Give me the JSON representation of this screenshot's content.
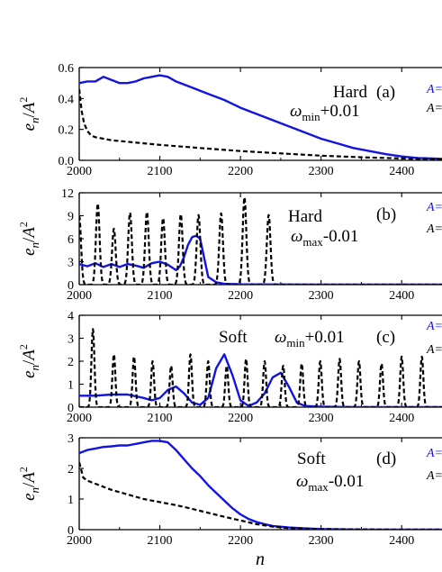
{
  "figure": {
    "xlabel_base": "n",
    "ylabel_base": "e",
    "ylabel_sub": "n",
    "ylabel_div": "/",
    "ylabel_A": "A",
    "ylabel_sup": "2",
    "legend_fragment": "A="
  },
  "colors": {
    "solid": "#1414e0",
    "dashed": "#000000"
  },
  "chart_data": [
    {
      "type": "line",
      "panel": "(a)",
      "mode": "Hard",
      "omega_base": "ω",
      "omega_sub": "min",
      "omega_offset": "+0.01",
      "xlim": [
        2000,
        2450
      ],
      "ylim": [
        0,
        0.6
      ],
      "xticks": [
        2000,
        2100,
        2200,
        2300,
        2400
      ],
      "yticks": [
        0.0,
        0.2,
        0.4,
        0.6
      ],
      "ytick_labels": [
        "0.0",
        "0.2",
        "0.4",
        "0.6"
      ],
      "series": [
        {
          "style": "solid",
          "x": [
            2000,
            2010,
            2020,
            2030,
            2040,
            2050,
            2060,
            2070,
            2080,
            2090,
            2100,
            2110,
            2120,
            2140,
            2160,
            2180,
            2200,
            2220,
            2240,
            2260,
            2280,
            2300,
            2320,
            2340,
            2360,
            2380,
            2400,
            2420,
            2450
          ],
          "y": [
            0.5,
            0.51,
            0.51,
            0.54,
            0.52,
            0.5,
            0.5,
            0.51,
            0.53,
            0.54,
            0.55,
            0.54,
            0.51,
            0.47,
            0.43,
            0.39,
            0.34,
            0.3,
            0.26,
            0.22,
            0.18,
            0.14,
            0.11,
            0.08,
            0.06,
            0.04,
            0.025,
            0.015,
            0.01
          ]
        },
        {
          "style": "dashed",
          "x": [
            2000,
            2003,
            2006,
            2010,
            2015,
            2020,
            2030,
            2040,
            2060,
            2080,
            2100,
            2150,
            2200,
            2250,
            2300,
            2350,
            2400,
            2450
          ],
          "y": [
            0.46,
            0.32,
            0.24,
            0.19,
            0.16,
            0.15,
            0.14,
            0.13,
            0.12,
            0.11,
            0.1,
            0.08,
            0.06,
            0.045,
            0.03,
            0.02,
            0.012,
            0.005
          ]
        }
      ]
    },
    {
      "type": "line",
      "panel": "(b)",
      "mode": "Hard",
      "omega_base": "ω",
      "omega_sub": "max",
      "omega_offset": "-0.01",
      "xlim": [
        2000,
        2450
      ],
      "ylim": [
        0,
        12
      ],
      "xticks": [
        2000,
        2100,
        2200,
        2300,
        2400
      ],
      "yticks": [
        0,
        3,
        6,
        9,
        12
      ],
      "ytick_labels": [
        "0",
        "3",
        "6",
        "9",
        "12"
      ],
      "series": [
        {
          "style": "solid",
          "x": [
            2000,
            2010,
            2020,
            2030,
            2040,
            2050,
            2060,
            2070,
            2080,
            2090,
            2100,
            2110,
            2120,
            2125,
            2130,
            2135,
            2140,
            2145,
            2150,
            2155,
            2160,
            2170,
            2180,
            2200,
            2250,
            2300,
            2450
          ],
          "y": [
            2.7,
            2.4,
            2.8,
            2.3,
            2.7,
            2.3,
            2.7,
            2.5,
            2.2,
            2.8,
            3.0,
            2.6,
            1.9,
            2.4,
            3.6,
            5.2,
            6.2,
            6.4,
            6.0,
            3.5,
            1.0,
            0.3,
            0.1,
            0.05,
            0.02,
            0.0,
            0.0
          ]
        },
        {
          "style": "dashed",
          "peaks_x": [
            2000,
            2023,
            2043,
            2063,
            2084,
            2104,
            2126,
            2148,
            2176,
            2205,
            2235
          ],
          "peaks_y": [
            9.0,
            10.6,
            7.3,
            9.4,
            9.5,
            8.7,
            9.2,
            9.1,
            9.3,
            11.4,
            9.1
          ],
          "peak_width": 3.2
        }
      ]
    },
    {
      "type": "line",
      "panel": "(c)",
      "mode": "Soft",
      "omega_base": "ω",
      "omega_sub": "min",
      "omega_offset": "+0.01",
      "xlim": [
        2000,
        2450
      ],
      "ylim": [
        0,
        4
      ],
      "xticks": [
        2000,
        2100,
        2200,
        2300,
        2400
      ],
      "yticks": [
        0,
        1,
        2,
        3,
        4
      ],
      "ytick_labels": [
        "0",
        "1",
        "2",
        "3",
        "4"
      ],
      "series": [
        {
          "style": "solid",
          "x": [
            2000,
            2020,
            2040,
            2060,
            2080,
            2090,
            2100,
            2110,
            2120,
            2130,
            2140,
            2150,
            2160,
            2170,
            2180,
            2190,
            2200,
            2210,
            2220,
            2230,
            2240,
            2250,
            2260,
            2270,
            2280,
            2300,
            2350,
            2400,
            2450
          ],
          "y": [
            0.5,
            0.5,
            0.55,
            0.55,
            0.4,
            0.3,
            0.4,
            0.75,
            0.9,
            0.6,
            0.2,
            0.1,
            0.4,
            1.7,
            2.3,
            1.4,
            0.3,
            0.05,
            0.2,
            0.6,
            1.3,
            1.5,
            0.9,
            0.2,
            0.05,
            0.02,
            0.0,
            0.0,
            0.0
          ]
        },
        {
          "style": "dashed",
          "peaks_x": [
            2017,
            2043,
            2068,
            2091,
            2114,
            2138,
            2160,
            2183,
            2207,
            2230,
            2253,
            2276,
            2299,
            2323,
            2347,
            2375,
            2400,
            2425
          ],
          "peaks_y": [
            3.4,
            2.3,
            2.2,
            2.0,
            1.8,
            2.3,
            2.0,
            1.8,
            2.1,
            2.0,
            1.8,
            1.9,
            2.0,
            2.1,
            2.0,
            1.9,
            2.2,
            2.2
          ],
          "peak_width": 2.6
        }
      ]
    },
    {
      "type": "line",
      "panel": "(d)",
      "mode": "Soft",
      "omega_base": "ω",
      "omega_sub": "max",
      "omega_offset": "-0.01",
      "xlim": [
        2000,
        2450
      ],
      "ylim": [
        0,
        3
      ],
      "xticks": [
        2000,
        2100,
        2200,
        2300,
        2400
      ],
      "yticks": [
        0,
        1,
        2,
        3
      ],
      "ytick_labels": [
        "0",
        "1",
        "2",
        "3"
      ],
      "series": [
        {
          "style": "solid",
          "x": [
            2000,
            2010,
            2020,
            2030,
            2040,
            2050,
            2060,
            2070,
            2080,
            2090,
            2100,
            2110,
            2120,
            2130,
            2140,
            2150,
            2160,
            2170,
            2180,
            2190,
            2200,
            2210,
            2220,
            2230,
            2240,
            2260,
            2280,
            2300,
            2350,
            2450
          ],
          "y": [
            2.5,
            2.6,
            2.65,
            2.7,
            2.72,
            2.75,
            2.75,
            2.8,
            2.85,
            2.9,
            2.9,
            2.85,
            2.6,
            2.3,
            2.0,
            1.75,
            1.45,
            1.2,
            0.95,
            0.7,
            0.5,
            0.35,
            0.25,
            0.18,
            0.12,
            0.07,
            0.04,
            0.02,
            0.0,
            0.0
          ]
        },
        {
          "style": "dashed",
          "x": [
            2000,
            2005,
            2010,
            2020,
            2040,
            2060,
            2080,
            2100,
            2120,
            2140,
            2160,
            2180,
            2200,
            2220,
            2240,
            2260,
            2280,
            2300,
            2350,
            2400,
            2450
          ],
          "y": [
            2.2,
            1.7,
            1.6,
            1.5,
            1.3,
            1.15,
            1.0,
            0.9,
            0.8,
            0.68,
            0.55,
            0.42,
            0.3,
            0.18,
            0.1,
            0.05,
            0.03,
            0.02,
            0.01,
            0.0,
            0.0
          ]
        }
      ]
    }
  ]
}
